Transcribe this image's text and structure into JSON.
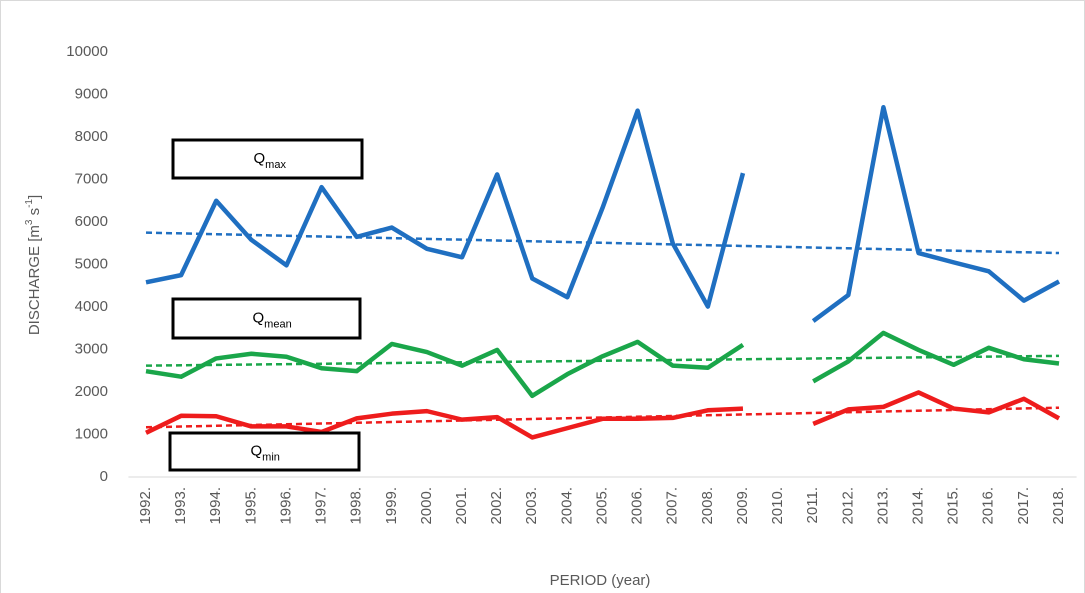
{
  "chart_data": {
    "type": "line",
    "ylabel_parts": [
      "DISCHARGE [m",
      "3",
      " s",
      "-1",
      "]"
    ],
    "xlabel": "PERIOD (year)",
    "categories": [
      "1992.",
      "1993.",
      "1994.",
      "1995.",
      "1996.",
      "1997.",
      "1998.",
      "1999.",
      "2000.",
      "2001.",
      "2002.",
      "2003.",
      "2004.",
      "2005.",
      "2006.",
      "2007.",
      "2008.",
      "2009.",
      "2010.",
      "2011.",
      "2012.",
      "2013.",
      "2014.",
      "2015.",
      "2016.",
      "2017.",
      "2018."
    ],
    "ylim": [
      0,
      10000
    ],
    "yticks": [
      0,
      1000,
      2000,
      3000,
      4000,
      5000,
      6000,
      7000,
      8000,
      9000,
      10000
    ],
    "series": [
      {
        "color": "#1f6fc1",
        "values": [
          4580,
          4750,
          6500,
          5580,
          4980,
          6820,
          5650,
          5870,
          5370,
          5170,
          7120,
          4670,
          4230,
          6330,
          8620,
          5500,
          4010,
          7150,
          null,
          3670,
          4280,
          8700,
          5270,
          5050,
          4840,
          4150,
          4600
        ],
        "trend": [
          5750,
          5270
        ]
      },
      {
        "color": "#1aa64a",
        "values": [
          2490,
          2360,
          2790,
          2900,
          2830,
          2560,
          2490,
          3130,
          2940,
          2620,
          2990,
          1910,
          2420,
          2840,
          3180,
          2620,
          2570,
          3110,
          null,
          2250,
          2720,
          3390,
          2990,
          2640,
          3040,
          2770,
          2670
        ],
        "trend": [
          2620,
          2850
        ]
      },
      {
        "color": "#ee1c1c",
        "values": [
          1040,
          1440,
          1430,
          1190,
          1190,
          1060,
          1380,
          1490,
          1550,
          1350,
          1410,
          930,
          1150,
          1370,
          1370,
          1390,
          1570,
          1610,
          null,
          1250,
          1590,
          1650,
          1990,
          1610,
          1520,
          1840,
          1380
        ],
        "trend": [
          1170,
          1630
        ]
      }
    ],
    "annotations": [
      {
        "text": "Q",
        "sub": "max"
      },
      {
        "text": "Q",
        "sub": "mean"
      },
      {
        "text": "Q",
        "sub": "min"
      }
    ]
  }
}
